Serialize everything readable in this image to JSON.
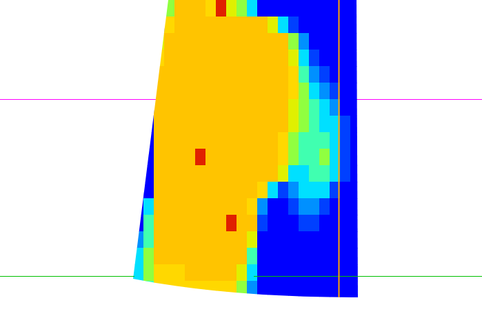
{
  "chart_data": {
    "type": "heatmap",
    "tick_labels": false,
    "cells": [
      [
        0,
        0,
        0,
        5,
        8,
        8,
        8,
        7,
        9,
        6,
        5,
        3,
        0,
        0,
        0,
        0,
        0,
        0,
        0,
        0,
        0,
        0
      ],
      [
        0,
        0,
        0,
        7,
        8,
        8,
        8,
        8,
        8,
        8,
        8,
        8,
        8,
        6,
        3,
        1,
        0,
        0,
        0,
        0,
        0,
        0
      ],
      [
        0,
        0,
        6,
        8,
        8,
        8,
        8,
        8,
        8,
        8,
        8,
        8,
        8,
        8,
        8,
        5,
        2,
        0,
        0,
        0,
        0,
        0
      ],
      [
        0,
        0,
        7,
        8,
        8,
        8,
        8,
        8,
        8,
        8,
        8,
        8,
        8,
        8,
        8,
        6,
        3,
        1,
        0,
        0,
        0,
        0
      ],
      [
        0,
        0,
        8,
        8,
        8,
        8,
        8,
        8,
        8,
        8,
        8,
        8,
        8,
        8,
        8,
        7,
        4,
        2,
        1,
        0,
        0,
        0
      ],
      [
        0,
        0,
        8,
        8,
        8,
        8,
        8,
        8,
        8,
        8,
        8,
        8,
        8,
        8,
        8,
        7,
        5,
        3,
        2,
        1,
        0,
        0
      ],
      [
        0,
        0,
        8,
        8,
        8,
        8,
        8,
        8,
        8,
        8,
        8,
        8,
        8,
        8,
        8,
        6,
        5,
        4,
        3,
        2,
        0,
        0
      ],
      [
        0,
        0,
        8,
        8,
        8,
        8,
        8,
        8,
        8,
        8,
        8,
        8,
        8,
        8,
        8,
        6,
        5,
        4,
        3,
        3,
        1,
        0
      ],
      [
        0,
        0,
        8,
        8,
        8,
        8,
        8,
        8,
        8,
        8,
        8,
        8,
        8,
        8,
        7,
        5,
        4,
        4,
        4,
        3,
        1,
        0
      ],
      [
        0,
        0,
        8,
        8,
        8,
        8,
        9,
        8,
        8,
        8,
        8,
        8,
        8,
        8,
        7,
        5,
        4,
        4,
        5,
        3,
        1,
        0
      ],
      [
        0,
        0,
        8,
        8,
        8,
        8,
        8,
        8,
        8,
        8,
        8,
        8,
        8,
        8,
        6,
        3,
        3,
        4,
        4,
        3,
        1,
        0
      ],
      [
        0,
        0,
        8,
        8,
        8,
        8,
        8,
        8,
        8,
        8,
        8,
        8,
        7,
        3,
        1,
        2,
        3,
        3,
        3,
        1,
        0,
        0
      ],
      [
        0,
        3,
        8,
        8,
        8,
        8,
        8,
        8,
        8,
        8,
        8,
        7,
        2,
        0,
        0,
        1,
        2,
        2,
        1,
        0,
        0,
        0
      ],
      [
        0,
        4,
        8,
        8,
        8,
        8,
        8,
        8,
        8,
        9,
        8,
        8,
        1,
        0,
        0,
        0,
        1,
        1,
        0,
        0,
        0,
        0
      ],
      [
        2,
        4,
        8,
        8,
        8,
        8,
        8,
        8,
        8,
        8,
        8,
        6,
        0,
        0,
        0,
        0,
        0,
        0,
        0,
        0,
        0,
        0
      ],
      [
        3,
        5,
        8,
        8,
        8,
        8,
        8,
        8,
        8,
        8,
        8,
        4,
        0,
        0,
        0,
        0,
        0,
        0,
        0,
        0,
        0,
        0
      ],
      [
        3,
        5,
        7,
        7,
        7,
        8,
        8,
        8,
        8,
        8,
        6,
        3,
        0,
        0,
        0,
        0,
        0,
        0,
        0,
        0,
        0,
        0
      ],
      [
        2,
        4,
        7,
        7,
        7,
        7,
        7,
        7,
        7,
        7,
        5,
        2,
        0,
        0,
        0,
        0,
        0,
        0,
        0,
        0,
        0,
        0
      ]
    ]
  }
}
